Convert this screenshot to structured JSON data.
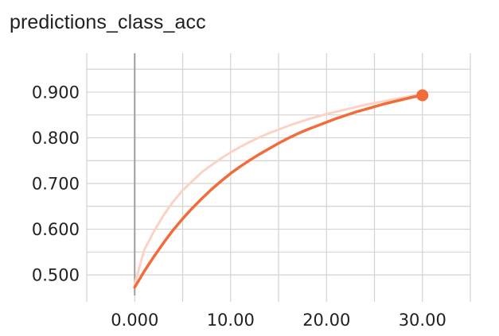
{
  "chart_data": {
    "type": "line",
    "title": "predictions_class_acc",
    "xlabel": "",
    "ylabel": "",
    "xlim": [
      -5,
      35
    ],
    "ylim": [
      0.455,
      0.985
    ],
    "x_ticks": [
      0,
      10,
      20,
      30
    ],
    "x_tick_labels": [
      "0.000",
      "10.00",
      "20.00",
      "30.00"
    ],
    "y_ticks": [
      0.5,
      0.6,
      0.7,
      0.8,
      0.9
    ],
    "y_tick_labels": [
      "0.500",
      "0.600",
      "0.700",
      "0.800",
      "0.900"
    ],
    "grid": true,
    "series": [
      {
        "role": "raw",
        "color": "#fbd3c5",
        "x": [
          0,
          1,
          2,
          3,
          4,
          5,
          6,
          7,
          8,
          9,
          10,
          11,
          12,
          13,
          14,
          15,
          16,
          17,
          18,
          19,
          20,
          21,
          22,
          23,
          24,
          25,
          26,
          27,
          28,
          29,
          30
        ],
        "y": [
          0.48,
          0.555,
          0.595,
          0.63,
          0.66,
          0.685,
          0.705,
          0.725,
          0.74,
          0.755,
          0.768,
          0.78,
          0.791,
          0.801,
          0.81,
          0.818,
          0.826,
          0.833,
          0.84,
          0.846,
          0.852,
          0.857,
          0.862,
          0.867,
          0.872,
          0.876,
          0.88,
          0.884,
          0.888,
          0.892,
          0.896
        ]
      },
      {
        "role": "smoothed",
        "color": "#f26b3a",
        "x": [
          0,
          1,
          2,
          3,
          4,
          5,
          6,
          7,
          8,
          9,
          10,
          11,
          12,
          13,
          14,
          15,
          16,
          17,
          18,
          19,
          20,
          21,
          22,
          23,
          24,
          25,
          26,
          27,
          28,
          29,
          30
        ],
        "y": [
          0.473,
          0.508,
          0.54,
          0.57,
          0.598,
          0.623,
          0.646,
          0.667,
          0.687,
          0.705,
          0.722,
          0.737,
          0.751,
          0.764,
          0.776,
          0.788,
          0.799,
          0.809,
          0.818,
          0.826,
          0.834,
          0.842,
          0.849,
          0.856,
          0.862,
          0.868,
          0.874,
          0.879,
          0.884,
          0.889,
          0.893
        ]
      }
    ],
    "highlight_point": {
      "x": 30,
      "y": 0.893,
      "color": "#f26b3a"
    },
    "axis_line_color": "#9e9e9e",
    "grid_color": "#d3d3d3"
  }
}
